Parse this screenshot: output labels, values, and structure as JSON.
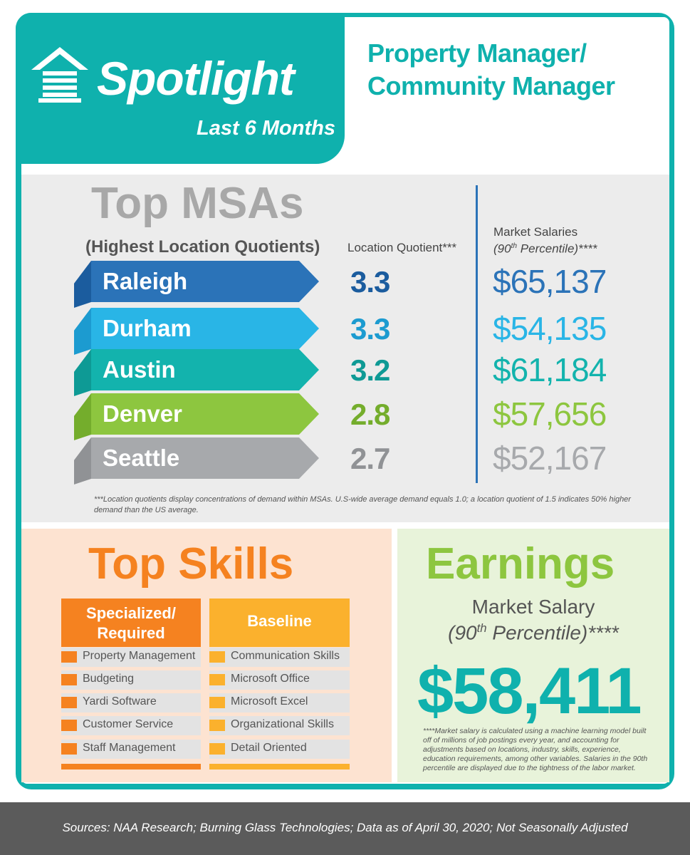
{
  "header": {
    "brand": "Spotlight",
    "period": "Last 6 Months",
    "role_line1": "Property Manager/",
    "role_line2": "Community Manager",
    "icon": "house-icon"
  },
  "msa": {
    "title": "Top MSAs",
    "subtitle": "(Highest Location Quotients)",
    "lq_header": "Location Quotient***",
    "salary_header_line1": "Market Salaries",
    "salary_header_line2_a": "(90",
    "salary_header_line2_sup": "th",
    "salary_header_line2_b": " Percentile)****",
    "rows": [
      {
        "city": "Raleigh",
        "lq": "3.3",
        "salary": "$65,137",
        "color": "#2b73b8",
        "dark": "#1b5c9e"
      },
      {
        "city": "Durham",
        "lq": "3.3",
        "salary": "$54,135",
        "color": "#29b5e6",
        "dark": "#1c9bd0"
      },
      {
        "city": "Austin",
        "lq": "3.2",
        "salary": "$61,184",
        "color": "#13b3ad",
        "dark": "#0e9a95"
      },
      {
        "city": "Denver",
        "lq": "2.8",
        "salary": "$57,656",
        "color": "#8dc63f",
        "dark": "#74ad2c"
      },
      {
        "city": "Seattle",
        "lq": "2.7",
        "salary": "$52,167",
        "color": "#a7a9ac",
        "dark": "#909295"
      }
    ],
    "note": "***Location quotients display concentrations of demand within MSAs. U.S-wide average demand equals 1.0; a location quotient of 1.5 indicates 50% higher demand than the US average."
  },
  "skills": {
    "title": "Top Skills",
    "col1_header": "Specialized/ Required",
    "col2_header": "Baseline",
    "specialized": [
      "Property Management",
      "Budgeting",
      "Yardi Software",
      "Customer Service",
      "Staff Management"
    ],
    "baseline": [
      "Communication Skills",
      "Microsoft Office",
      "Microsoft Excel",
      "Organizational Skills",
      "Detail Oriented"
    ]
  },
  "earnings": {
    "title": "Earnings",
    "sub_line1": "Market Salary",
    "sub_line2_a": "(90",
    "sub_line2_sup": "th",
    "sub_line2_b": " Percentile)****",
    "value": "$58,411",
    "note": "****Market salary is calculated using a machine learning model built off of millions of job postings every year, and accounting for adjustments based on locations, industry, skills, experience, education requirements, among other variables. Salaries in the 90th percentile are displayed due to the tightness of the labor market."
  },
  "footer": {
    "sources": "Sources:  NAA Research; Burning Glass Technologies; Data as of April 30, 2020; Not Seasonally Adjusted"
  }
}
